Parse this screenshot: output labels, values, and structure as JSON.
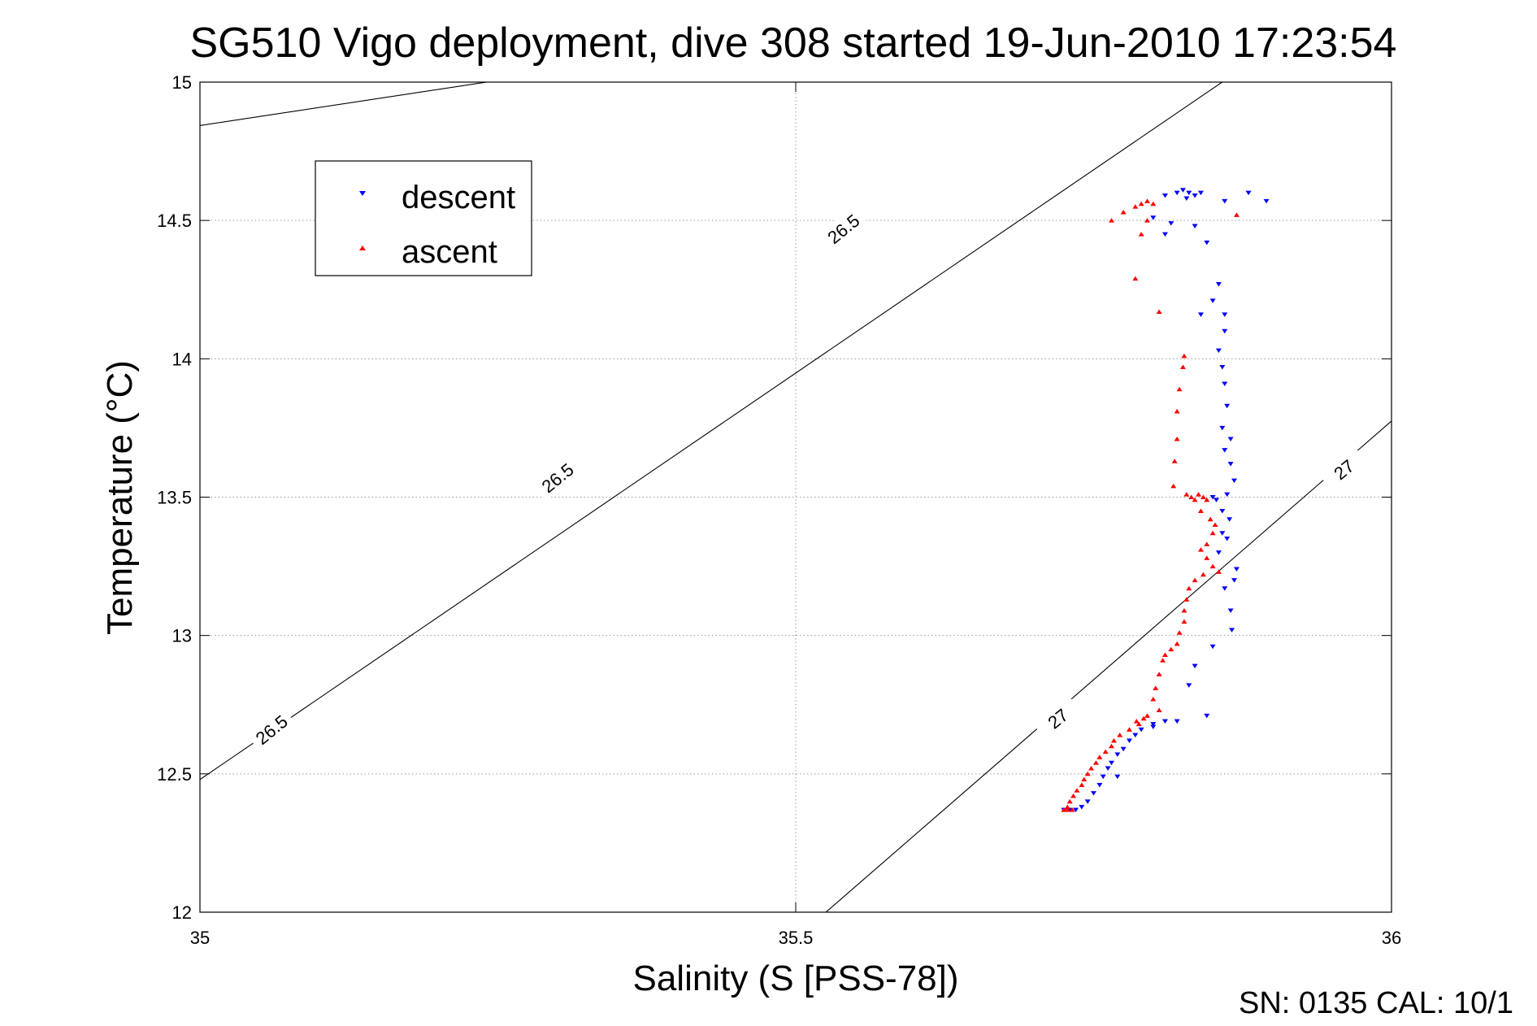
{
  "chart_data": {
    "type": "scatter",
    "title": "SG510 Vigo deployment, dive 308 started 19-Jun-2010 17:23:54",
    "xlabel": "Salinity (S [PSS-78])",
    "ylabel": "Temperature (°C)",
    "xlim": [
      35,
      36
    ],
    "ylim": [
      12,
      15
    ],
    "xticks": [
      35,
      35.5,
      36
    ],
    "yticks": [
      12,
      12.5,
      13,
      13.5,
      14,
      14.5,
      15
    ],
    "xtick_labels": [
      "35",
      "35.5",
      "36"
    ],
    "ytick_labels": [
      "12",
      "12.5",
      "13",
      "13.5",
      "14",
      "14.5",
      "15"
    ],
    "grid": "dotted",
    "legend_position": "top-left",
    "footer": "SN: 0135  CAL: 10/1",
    "density_contours": [
      {
        "level": "26.5",
        "line": [
          [
            34.98,
            14.83
          ],
          [
            35.7,
            15.3
          ]
        ]
      },
      {
        "level": "26.5",
        "line": [
          [
            34.99,
            12.45
          ],
          [
            35.96,
            15.3
          ]
        ]
      },
      {
        "level": "27",
        "line": [
          [
            35.52,
            11.98
          ],
          [
            36.02,
            13.85
          ]
        ]
      }
    ],
    "contour_labels": [
      {
        "text": "26.5",
        "x": 35.54,
        "y": 14.47,
        "angle": -39
      },
      {
        "text": "26.5",
        "x": 35.3,
        "y": 13.57,
        "angle": -39
      },
      {
        "text": "26.5",
        "x": 35.06,
        "y": 12.66,
        "angle": -39
      },
      {
        "text": "27",
        "x": 35.72,
        "y": 12.7,
        "angle": -39
      },
      {
        "text": "27",
        "x": 35.96,
        "y": 13.6,
        "angle": -39
      }
    ],
    "series": [
      {
        "name": "descent",
        "color": "#0000ff",
        "marker": "triangle-down",
        "points": [
          [
            35.82,
            14.6
          ],
          [
            35.825,
            14.61
          ],
          [
            35.83,
            14.6
          ],
          [
            35.835,
            14.59
          ],
          [
            35.84,
            14.6
          ],
          [
            35.828,
            14.58
          ],
          [
            35.81,
            14.59
          ],
          [
            35.86,
            14.57
          ],
          [
            35.895,
            14.57
          ],
          [
            35.88,
            14.6
          ],
          [
            35.8,
            14.51
          ],
          [
            35.815,
            14.49
          ],
          [
            35.81,
            14.45
          ],
          [
            35.835,
            14.48
          ],
          [
            35.845,
            14.42
          ],
          [
            35.855,
            14.27
          ],
          [
            35.85,
            14.21
          ],
          [
            35.86,
            14.16
          ],
          [
            35.86,
            14.1
          ],
          [
            35.84,
            14.16
          ],
          [
            35.855,
            14.03
          ],
          [
            35.858,
            13.97
          ],
          [
            35.86,
            13.91
          ],
          [
            35.862,
            13.83
          ],
          [
            35.858,
            13.75
          ],
          [
            35.865,
            13.71
          ],
          [
            35.86,
            13.67
          ],
          [
            35.865,
            13.62
          ],
          [
            35.868,
            13.56
          ],
          [
            35.862,
            13.51
          ],
          [
            35.85,
            13.5
          ],
          [
            35.853,
            13.49
          ],
          [
            35.858,
            13.45
          ],
          [
            35.864,
            13.42
          ],
          [
            35.858,
            13.37
          ],
          [
            35.862,
            13.35
          ],
          [
            35.855,
            13.3
          ],
          [
            35.87,
            13.24
          ],
          [
            35.868,
            13.2
          ],
          [
            35.86,
            13.17
          ],
          [
            35.865,
            13.09
          ],
          [
            35.866,
            13.02
          ],
          [
            35.85,
            12.96
          ],
          [
            35.835,
            12.89
          ],
          [
            35.83,
            12.82
          ],
          [
            35.845,
            12.71
          ],
          [
            35.82,
            12.69
          ],
          [
            35.81,
            12.69
          ],
          [
            35.8,
            12.68
          ],
          [
            35.79,
            12.66
          ],
          [
            35.785,
            12.64
          ],
          [
            35.78,
            12.62
          ],
          [
            35.775,
            12.59
          ],
          [
            35.77,
            12.57
          ],
          [
            35.765,
            12.54
          ],
          [
            35.762,
            12.52
          ],
          [
            35.758,
            12.49
          ],
          [
            35.755,
            12.46
          ],
          [
            35.75,
            12.43
          ],
          [
            35.745,
            12.4
          ],
          [
            35.74,
            12.38
          ],
          [
            35.735,
            12.37
          ],
          [
            35.73,
            12.37
          ],
          [
            35.725,
            12.37
          ],
          [
            35.77,
            12.49
          ],
          [
            35.8,
            12.67
          ]
        ]
      },
      {
        "name": "ascent",
        "color": "#ff0000",
        "marker": "triangle-up",
        "points": [
          [
            35.79,
            14.56
          ],
          [
            35.795,
            14.57
          ],
          [
            35.8,
            14.56
          ],
          [
            35.785,
            14.55
          ],
          [
            35.775,
            14.53
          ],
          [
            35.795,
            14.5
          ],
          [
            35.765,
            14.5
          ],
          [
            35.87,
            14.52
          ],
          [
            35.79,
            14.45
          ],
          [
            35.785,
            14.29
          ],
          [
            35.805,
            14.17
          ],
          [
            35.826,
            14.01
          ],
          [
            35.825,
            13.97
          ],
          [
            35.822,
            13.89
          ],
          [
            35.82,
            13.81
          ],
          [
            35.82,
            13.71
          ],
          [
            35.818,
            13.63
          ],
          [
            35.817,
            13.54
          ],
          [
            35.828,
            13.51
          ],
          [
            35.832,
            13.5
          ],
          [
            35.835,
            13.49
          ],
          [
            35.838,
            13.51
          ],
          [
            35.842,
            13.5
          ],
          [
            35.845,
            13.49
          ],
          [
            35.84,
            13.45
          ],
          [
            35.848,
            13.42
          ],
          [
            35.852,
            13.4
          ],
          [
            35.85,
            13.37
          ],
          [
            35.845,
            13.33
          ],
          [
            35.84,
            13.31
          ],
          [
            35.845,
            13.28
          ],
          [
            35.85,
            13.25
          ],
          [
            35.855,
            13.23
          ],
          [
            35.842,
            13.22
          ],
          [
            35.835,
            13.2
          ],
          [
            35.83,
            13.17
          ],
          [
            35.828,
            13.13
          ],
          [
            35.826,
            13.09
          ],
          [
            35.826,
            13.05
          ],
          [
            35.822,
            13.01
          ],
          [
            35.82,
            12.97
          ],
          [
            35.815,
            12.95
          ],
          [
            35.81,
            12.93
          ],
          [
            35.808,
            12.91
          ],
          [
            35.805,
            12.86
          ],
          [
            35.802,
            12.81
          ],
          [
            35.8,
            12.77
          ],
          [
            35.805,
            12.73
          ],
          [
            35.792,
            12.7
          ],
          [
            35.788,
            12.68
          ],
          [
            35.78,
            12.66
          ],
          [
            35.772,
            12.64
          ],
          [
            35.767,
            12.62
          ],
          [
            35.765,
            12.6
          ],
          [
            35.76,
            12.58
          ],
          [
            35.755,
            12.56
          ],
          [
            35.752,
            12.54
          ],
          [
            35.748,
            12.52
          ],
          [
            35.745,
            12.5
          ],
          [
            35.742,
            12.48
          ],
          [
            35.74,
            12.46
          ],
          [
            35.736,
            12.44
          ],
          [
            35.733,
            12.42
          ],
          [
            35.73,
            12.4
          ],
          [
            35.728,
            12.38
          ],
          [
            35.725,
            12.37
          ],
          [
            35.728,
            12.37
          ],
          [
            35.732,
            12.37
          ],
          [
            35.786,
            12.69
          ],
          [
            35.795,
            12.71
          ]
        ]
      }
    ]
  }
}
